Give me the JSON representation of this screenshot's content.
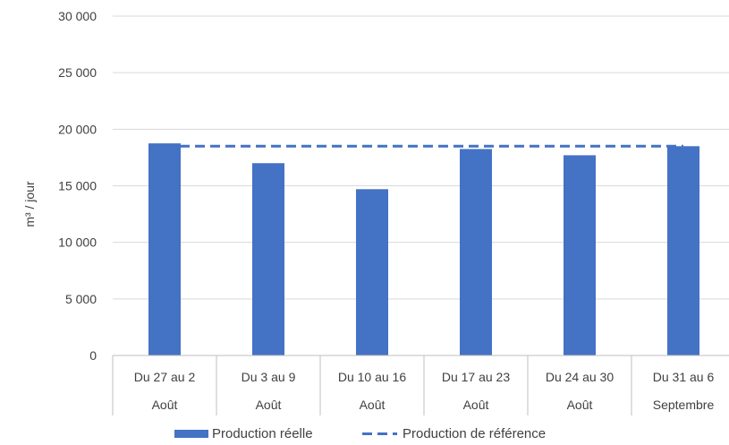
{
  "chart_data": {
    "type": "bar",
    "title": "",
    "xlabel": "",
    "ylabel": "m³ / jour",
    "ylim": [
      0,
      30000
    ],
    "yticks": [
      {
        "value": 0,
        "label": "0"
      },
      {
        "value": 5000,
        "label": "5 000"
      },
      {
        "value": 10000,
        "label": "10 000"
      },
      {
        "value": 15000,
        "label": "15 000"
      },
      {
        "value": 20000,
        "label": "20 000"
      },
      {
        "value": 25000,
        "label": "25 000"
      },
      {
        "value": 30000,
        "label": "30 000"
      }
    ],
    "grid": true,
    "legend_position": "bottom",
    "categories": [
      {
        "line1": "Du 27 au 2",
        "line2": "Août"
      },
      {
        "line1": "Du 3 au 9",
        "line2": "Août"
      },
      {
        "line1": "Du 10 au 16",
        "line2": "Août"
      },
      {
        "line1": "Du 17 au 23",
        "line2": "Août"
      },
      {
        "line1": "Du 24 au 30",
        "line2": "Août"
      },
      {
        "line1": "Du 31 au 6",
        "line2": "Septembre"
      }
    ],
    "series": [
      {
        "name": "Production réelle",
        "kind": "bar",
        "color": "#4472C4",
        "values": [
          18750,
          17000,
          14700,
          18250,
          17700,
          18500
        ]
      },
      {
        "name": "Production de référence",
        "kind": "dashed-line",
        "color": "#4472C4",
        "values": [
          18500,
          18500,
          18500,
          18500,
          18500,
          18500
        ]
      }
    ]
  }
}
